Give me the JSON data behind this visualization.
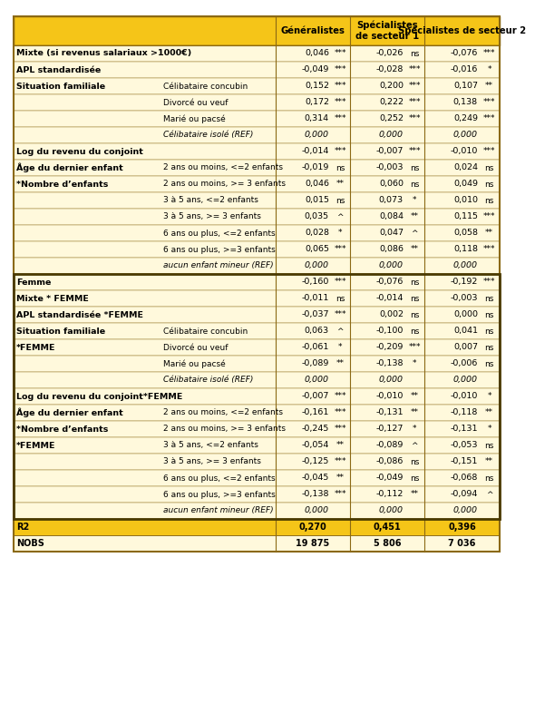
{
  "GOLD": "#F5C518",
  "LIGHT_YELLOW": "#FFF9DC",
  "DARK_BORDER": "#8B6914",
  "SECTION_BORDER": "#4a3a00",
  "col_header": [
    "Généralistes",
    "Spécialistes\nde secteur 1",
    "Spécialistes de secteur 2"
  ],
  "rows": [
    {
      "col1": "Mixte (si revenus salariaux >1000€)",
      "col2": "",
      "v1": "0,046",
      "s1": "***",
      "v2": "-0,026",
      "s2": "ns",
      "v3": "-0,076",
      "s3": "***",
      "bold": true,
      "section": false,
      "italic": false
    },
    {
      "col1": "APL standardisée",
      "col2": "",
      "v1": "-0,049",
      "s1": "***",
      "v2": "-0,028",
      "s2": "***",
      "v3": "-0,016",
      "s3": "*",
      "bold": true,
      "section": false,
      "italic": false
    },
    {
      "col1": "Situation familiale",
      "col2": "Célibataire concubin",
      "v1": "0,152",
      "s1": "***",
      "v2": "0,200",
      "s2": "***",
      "v3": "0,107",
      "s3": "**",
      "bold": true,
      "section": false,
      "italic": false
    },
    {
      "col1": "",
      "col2": "Divorcé ou veuf",
      "v1": "0,172",
      "s1": "***",
      "v2": "0,222",
      "s2": "***",
      "v3": "0,138",
      "s3": "***",
      "bold": false,
      "section": false,
      "italic": false
    },
    {
      "col1": "",
      "col2": "Marié ou pacsé",
      "v1": "0,314",
      "s1": "***",
      "v2": "0,252",
      "s2": "***",
      "v3": "0,249",
      "s3": "***",
      "bold": false,
      "section": false,
      "italic": false
    },
    {
      "col1": "",
      "col2": "Célibataire isolé (REF)",
      "v1": "0,000",
      "s1": "",
      "v2": "0,000",
      "s2": "",
      "v3": "0,000",
      "s3": "",
      "bold": false,
      "section": false,
      "italic": true
    },
    {
      "col1": "Log du revenu du conjoint",
      "col2": "",
      "v1": "-0,014",
      "s1": "***",
      "v2": "-0,007",
      "s2": "***",
      "v3": "-0,010",
      "s3": "***",
      "bold": true,
      "section": false,
      "italic": false
    },
    {
      "col1": "Âge du dernier enfant",
      "col2": "2 ans ou moins, <=2 enfants",
      "v1": "-0,019",
      "s1": "ns",
      "v2": "-0,003",
      "s2": "ns",
      "v3": "0,024",
      "s3": "ns",
      "bold": true,
      "section": false,
      "italic": false
    },
    {
      "col1": "*Nombre d’enfants",
      "col2": "2 ans ou moins, >= 3 enfants",
      "v1": "0,046",
      "s1": "**",
      "v2": "0,060",
      "s2": "ns",
      "v3": "0,049",
      "s3": "ns",
      "bold": true,
      "section": false,
      "italic": false
    },
    {
      "col1": "",
      "col2": "3 à 5 ans, <=2 enfants",
      "v1": "0,015",
      "s1": "ns",
      "v2": "0,073",
      "s2": "*",
      "v3": "0,010",
      "s3": "ns",
      "bold": false,
      "section": false,
      "italic": false
    },
    {
      "col1": "",
      "col2": "3 à 5 ans, >= 3 enfants",
      "v1": "0,035",
      "s1": "^",
      "v2": "0,084",
      "s2": "**",
      "v3": "0,115",
      "s3": "***",
      "bold": false,
      "section": false,
      "italic": false
    },
    {
      "col1": "",
      "col2": "6 ans ou plus, <=2 enfants",
      "v1": "0,028",
      "s1": "*",
      "v2": "0,047",
      "s2": "^",
      "v3": "0,058",
      "s3": "**",
      "bold": false,
      "section": false,
      "italic": false
    },
    {
      "col1": "",
      "col2": "6 ans ou plus, >=3 enfants",
      "v1": "0,065",
      "s1": "***",
      "v2": "0,086",
      "s2": "**",
      "v3": "0,118",
      "s3": "***",
      "bold": false,
      "section": false,
      "italic": false
    },
    {
      "col1": "",
      "col2": "aucun enfant mineur (REF)",
      "v1": "0,000",
      "s1": "",
      "v2": "0,000",
      "s2": "",
      "v3": "0,000",
      "s3": "",
      "bold": false,
      "section": false,
      "italic": true
    },
    {
      "col1": "Femme",
      "col2": "",
      "v1": "-0,160",
      "s1": "***",
      "v2": "-0,076",
      "s2": "ns",
      "v3": "-0,192",
      "s3": "***",
      "bold": true,
      "section": true,
      "italic": false
    },
    {
      "col1": "Mixte * FEMME",
      "col2": "",
      "v1": "-0,011",
      "s1": "ns",
      "v2": "-0,014",
      "s2": "ns",
      "v3": "-0,003",
      "s3": "ns",
      "bold": true,
      "section": true,
      "italic": false
    },
    {
      "col1": "APL standardisée *FEMME",
      "col2": "",
      "v1": "-0,037",
      "s1": "***",
      "v2": "0,002",
      "s2": "ns",
      "v3": "0,000",
      "s3": "ns",
      "bold": true,
      "section": true,
      "italic": false
    },
    {
      "col1": "Situation familiale",
      "col2": "Célibataire concubin",
      "v1": "0,063",
      "s1": "^",
      "v2": "-0,100",
      "s2": "ns",
      "v3": "0,041",
      "s3": "ns",
      "bold": true,
      "section": true,
      "italic": false
    },
    {
      "col1": "*FEMME",
      "col2": "Divorcé ou veuf",
      "v1": "-0,061",
      "s1": "*",
      "v2": "-0,209",
      "s2": "***",
      "v3": "0,007",
      "s3": "ns",
      "bold": true,
      "section": true,
      "italic": false
    },
    {
      "col1": "",
      "col2": "Marié ou pacsé",
      "v1": "-0,089",
      "s1": "**",
      "v2": "-0,138",
      "s2": "*",
      "v3": "-0,006",
      "s3": "ns",
      "bold": false,
      "section": true,
      "italic": false
    },
    {
      "col1": "",
      "col2": "Célibataire isolé (REF)",
      "v1": "0,000",
      "s1": "",
      "v2": "0,000",
      "s2": "",
      "v3": "0,000",
      "s3": "",
      "bold": false,
      "section": true,
      "italic": true
    },
    {
      "col1": "Log du revenu du conjoint*FEMME",
      "col2": "",
      "v1": "-0,007",
      "s1": "***",
      "v2": "-0,010",
      "s2": "**",
      "v3": "-0,010",
      "s3": "*",
      "bold": true,
      "section": true,
      "italic": false
    },
    {
      "col1": "Âge du dernier enfant",
      "col2": "2 ans ou moins, <=2 enfants",
      "v1": "-0,161",
      "s1": "***",
      "v2": "-0,131",
      "s2": "**",
      "v3": "-0,118",
      "s3": "**",
      "bold": true,
      "section": true,
      "italic": false
    },
    {
      "col1": "*Nombre d’enfants",
      "col2": "2 ans ou moins, >= 3 enfants",
      "v1": "-0,245",
      "s1": "***",
      "v2": "-0,127",
      "s2": "*",
      "v3": "-0,131",
      "s3": "*",
      "bold": true,
      "section": true,
      "italic": false
    },
    {
      "col1": "*FEMME",
      "col2": "3 à 5 ans, <=2 enfants",
      "v1": "-0,054",
      "s1": "**",
      "v2": "-0,089",
      "s2": "^",
      "v3": "-0,053",
      "s3": "ns",
      "bold": true,
      "section": true,
      "italic": false
    },
    {
      "col1": "",
      "col2": "3 à 5 ans, >= 3 enfants",
      "v1": "-0,125",
      "s1": "***",
      "v2": "-0,086",
      "s2": "ns",
      "v3": "-0,151",
      "s3": "**",
      "bold": false,
      "section": true,
      "italic": false
    },
    {
      "col1": "",
      "col2": "6 ans ou plus, <=2 enfants",
      "v1": "-0,045",
      "s1": "**",
      "v2": "-0,049",
      "s2": "ns",
      "v3": "-0,068",
      "s3": "ns",
      "bold": false,
      "section": true,
      "italic": false
    },
    {
      "col1": "",
      "col2": "6 ans ou plus, >=3 enfants",
      "v1": "-0,138",
      "s1": "***",
      "v2": "-0,112",
      "s2": "**",
      "v3": "-0,094",
      "s3": "^",
      "bold": false,
      "section": true,
      "italic": false
    },
    {
      "col1": "",
      "col2": "aucun enfant mineur (REF)",
      "v1": "0,000",
      "s1": "",
      "v2": "0,000",
      "s2": "",
      "v3": "0,000",
      "s3": "",
      "bold": false,
      "section": true,
      "italic": true
    }
  ],
  "footer_rows": [
    {
      "label": "R2",
      "v1": "0,270",
      "v2": "0,451",
      "v3": "0,396",
      "bold": true
    },
    {
      "label": "NOBS",
      "v1": "19 875",
      "v2": "5 806",
      "v3": "7 036",
      "bold": true
    }
  ]
}
